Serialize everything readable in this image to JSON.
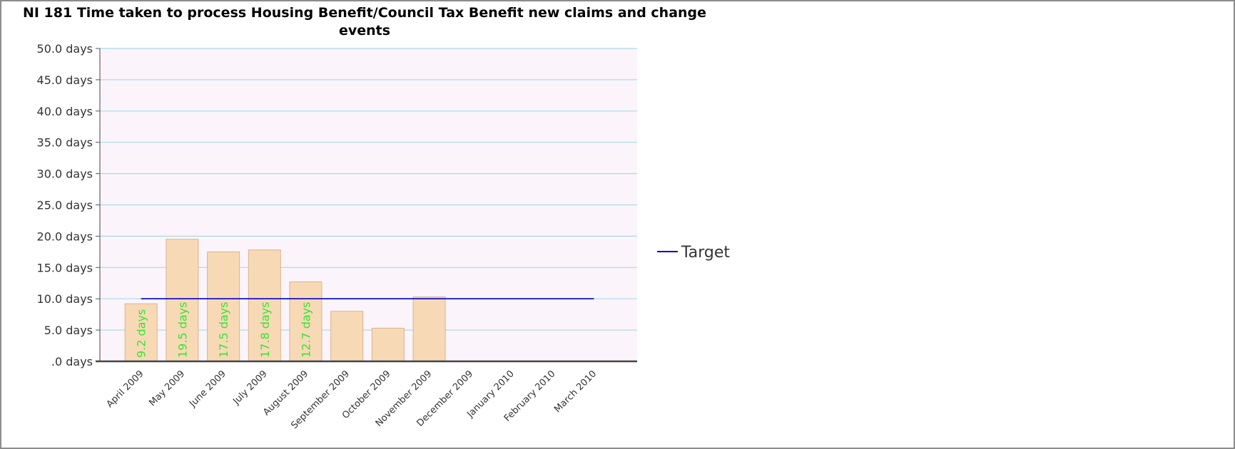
{
  "chart_data": {
    "type": "bar",
    "title": "NI 181 Time taken to process Housing Benefit/Council Tax Benefit new claims and change events",
    "categories": [
      "April 2009",
      "May 2009",
      "June 2009",
      "July 2009",
      "August 2009",
      "September 2009",
      "October 2009",
      "November 2009",
      "December 2009",
      "January 2010",
      "February 2010",
      "March 2010"
    ],
    "values": [
      9.2,
      19.5,
      17.5,
      17.8,
      12.7,
      8.0,
      5.3,
      10.3,
      null,
      null,
      null,
      null
    ],
    "data_labels": [
      "9.2 days",
      "19.5 days",
      "17.5 days",
      "17.8 days",
      "12.7 days",
      null,
      null,
      null,
      null,
      null,
      null,
      null
    ],
    "series": [
      {
        "name": "Target",
        "type": "line",
        "values": [
          10,
          10,
          10,
          10,
          10,
          10,
          10,
          10,
          10,
          10,
          10,
          10
        ],
        "color": "#0000cc"
      }
    ],
    "y_ticks": [
      ".0 days",
      "5.0 days",
      "10.0 days",
      "15.0 days",
      "20.0 days",
      "25.0 days",
      "30.0 days",
      "35.0 days",
      "40.0 days",
      "45.0 days",
      "50.0 days"
    ],
    "ylim": [
      0,
      50
    ],
    "grid": true,
    "legend": "right",
    "colors": {
      "bar": "#f8d9b6",
      "bar_edge": "#d8b48c",
      "plot_bg": "#fbf4fb",
      "grid": "#a9dbe6",
      "data_label": "#33e633"
    }
  }
}
